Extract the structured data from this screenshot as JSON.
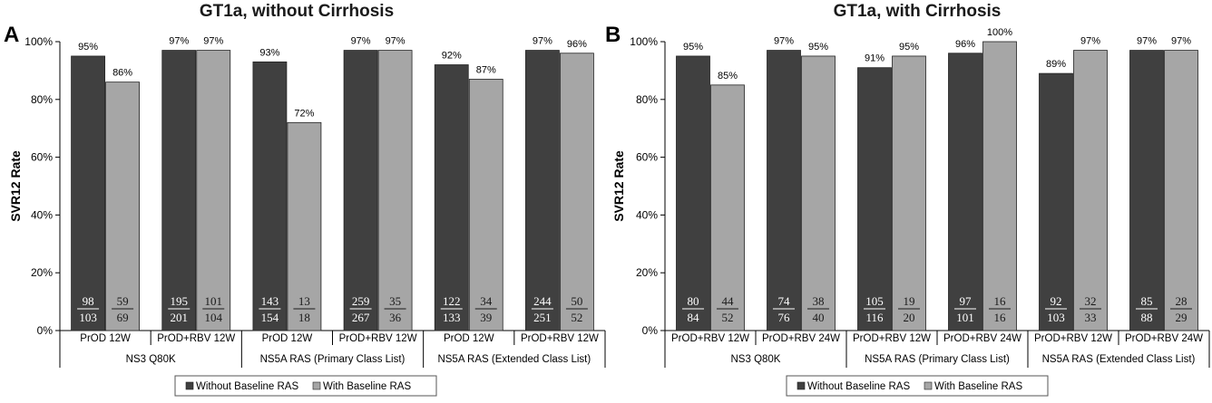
{
  "chart_data": [
    {
      "type": "bar",
      "panel": "A",
      "title": "GT1a, without Cirrhosis",
      "ylabel": "SVR12 Rate",
      "ylim": [
        0,
        100
      ],
      "yticks": [
        "0%",
        "20%",
        "40%",
        "60%",
        "80%",
        "100%"
      ],
      "groups": [
        "NS3 Q80K",
        "NS5A RAS (Primary Class List)",
        "NS5A RAS (Extended Class List)"
      ],
      "categories": [
        "PrOD 12W",
        "PrOD+RBV 12W",
        "PrOD 12W",
        "PrOD+RBV 12W",
        "PrOD 12W",
        "PrOD+RBV 12W"
      ],
      "series": [
        {
          "name": "Without Baseline RAS",
          "color": "#404040",
          "values": [
            95,
            97,
            93,
            97,
            92,
            97
          ],
          "labels": [
            "95%",
            "97%",
            "93%",
            "97%",
            "92%",
            "97%"
          ],
          "numerators": [
            "98",
            "195",
            "143",
            "259",
            "122",
            "244"
          ],
          "denominators": [
            "103",
            "201",
            "154",
            "267",
            "133",
            "251"
          ]
        },
        {
          "name": "With Baseline RAS",
          "color": "#a6a6a6",
          "values": [
            86,
            97,
            72,
            97,
            87,
            96
          ],
          "labels": [
            "86%",
            "97%",
            "72%",
            "97%",
            "87%",
            "96%"
          ],
          "numerators": [
            "59",
            "101",
            "13",
            "35",
            "34",
            "50"
          ],
          "denominators": [
            "69",
            "104",
            "18",
            "36",
            "39",
            "52"
          ]
        }
      ]
    },
    {
      "type": "bar",
      "panel": "B",
      "title": "GT1a, with Cirrhosis",
      "ylabel": "SVR12 Rate",
      "ylim": [
        0,
        100
      ],
      "yticks": [
        "0%",
        "20%",
        "40%",
        "60%",
        "80%",
        "100%"
      ],
      "groups": [
        "NS3 Q80K",
        "NS5A RAS (Primary Class List)",
        "NS5A RAS (Extended Class List)"
      ],
      "categories": [
        "PrOD+RBV 12W",
        "PrOD+RBV 24W",
        "PrOD+RBV 12W",
        "PrOD+RBV 24W",
        "PrOD+RBV 12W",
        "PrOD+RBV 24W"
      ],
      "series": [
        {
          "name": "Without Baseline RAS",
          "color": "#404040",
          "values": [
            95,
            97,
            91,
            96,
            89,
            97
          ],
          "labels": [
            "95%",
            "97%",
            "91%",
            "96%",
            "89%",
            "97%"
          ],
          "numerators": [
            "80",
            "74",
            "105",
            "97",
            "92",
            "85"
          ],
          "denominators": [
            "84",
            "76",
            "116",
            "101",
            "103",
            "88"
          ]
        },
        {
          "name": "With Baseline RAS",
          "color": "#a6a6a6",
          "values": [
            85,
            95,
            95,
            100,
            97,
            97
          ],
          "labels": [
            "85%",
            "95%",
            "95%",
            "100%",
            "97%",
            "97%"
          ],
          "numerators": [
            "44",
            "38",
            "19",
            "16",
            "32",
            "28"
          ],
          "denominators": [
            "52",
            "40",
            "20",
            "16",
            "33",
            "29"
          ]
        }
      ]
    }
  ]
}
